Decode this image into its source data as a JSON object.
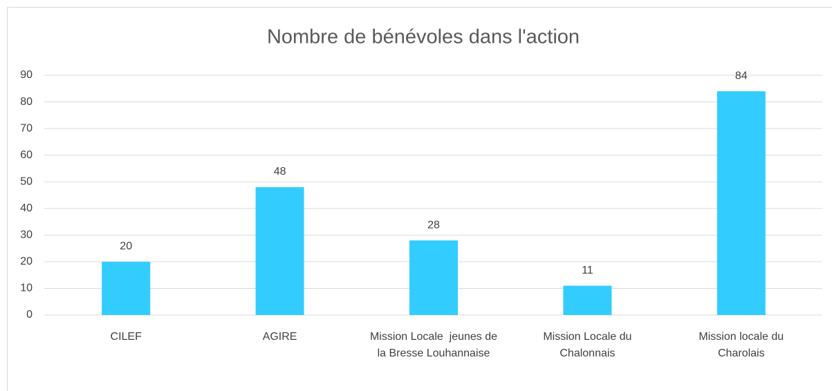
{
  "chart_data": {
    "type": "bar",
    "title": "Nombre de bénévoles dans l'action",
    "categories": [
      "CILEF",
      "AGIRE",
      "Mission Locale  jeunes de la Bresse Louhannaise",
      "Mission Locale du Chalonnais",
      "Mission locale du Charolais"
    ],
    "values": [
      20,
      48,
      28,
      11,
      84
    ],
    "color": "#33ccff",
    "ylim": [
      0,
      90
    ],
    "yticks": [
      0,
      10,
      20,
      30,
      40,
      50,
      60,
      70,
      80,
      90
    ],
    "grid": true
  }
}
